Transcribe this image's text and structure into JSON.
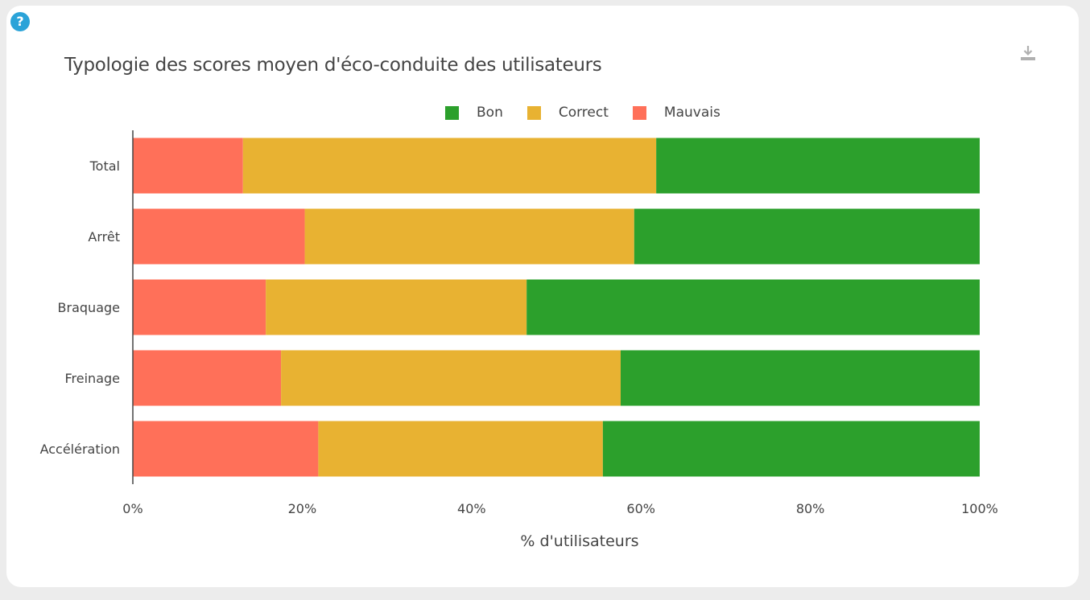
{
  "help": {
    "symbol": "?"
  },
  "toolbar": {
    "download_icon": "download-icon"
  },
  "colors": {
    "bon": "#2ca02c",
    "correct": "#e8b232",
    "mauvais": "#ff7059",
    "axis": "#444444"
  },
  "chart_data": {
    "type": "bar",
    "orientation": "horizontal",
    "stacked": true,
    "normalized": "percent",
    "title": "Typologie des scores moyen d'éco-conduite des utilisateurs",
    "xlabel": "% d'utilisateurs",
    "ylabel": "",
    "xlim": [
      0,
      100
    ],
    "xticks": [
      "0%",
      "20%",
      "40%",
      "60%",
      "80%",
      "100%"
    ],
    "legend_position": "top",
    "categories": [
      "Total",
      "Arrêt",
      "Braquage",
      "Freinage",
      "Accélération"
    ],
    "series": [
      {
        "name": "Bon",
        "color": "#2ca02c",
        "values": [
          38.2,
          40.8,
          53.5,
          42.4,
          44.5
        ]
      },
      {
        "name": "Correct",
        "color": "#e8b232",
        "values": [
          48.8,
          38.9,
          30.8,
          40.1,
          33.6
        ]
      },
      {
        "name": "Mauvais",
        "color": "#ff7059",
        "values": [
          13.0,
          20.3,
          15.7,
          17.5,
          21.9
        ]
      }
    ]
  }
}
